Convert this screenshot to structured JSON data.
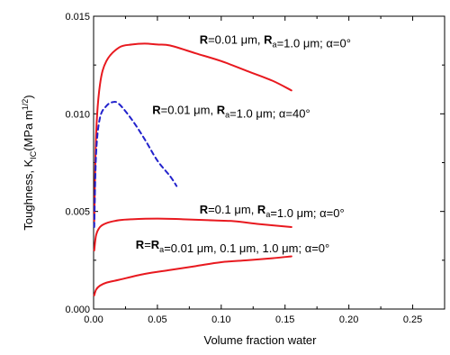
{
  "chart_data": {
    "type": "line",
    "xlabel": "Volume fraction water",
    "ylabel": {
      "main": "Toughness, K",
      "sub": "IC",
      "unit_open": "(MPa m",
      "unit_sup": "1/2",
      "unit_close": ")"
    },
    "xlim": [
      0,
      0.275
    ],
    "ylim": [
      0,
      0.015
    ],
    "xticks": [
      "0.00",
      "0.05",
      "0.10",
      "0.15",
      "0.20",
      "0.25"
    ],
    "yticks": [
      "0.000",
      "0.005",
      "0.010",
      "0.015"
    ],
    "grid": false,
    "series": [
      {
        "id": "curve-alpha0-r001",
        "color": "#e8191f",
        "dash": false,
        "x": [
          0.0005,
          0.002,
          0.005,
          0.01,
          0.02,
          0.03,
          0.04,
          0.05,
          0.06,
          0.08,
          0.1,
          0.12,
          0.14,
          0.155
        ],
        "y": [
          0.0045,
          0.009,
          0.0115,
          0.0127,
          0.0134,
          0.01355,
          0.0136,
          0.01355,
          0.0135,
          0.0131,
          0.0127,
          0.0122,
          0.0117,
          0.0112
        ]
      },
      {
        "id": "curve-alpha40-r001",
        "color": "#2222cc",
        "dash": true,
        "x": [
          0.0005,
          0.002,
          0.005,
          0.01,
          0.015,
          0.02,
          0.03,
          0.04,
          0.05,
          0.06,
          0.065
        ],
        "y": [
          0.0042,
          0.008,
          0.0098,
          0.0104,
          0.0106,
          0.0105,
          0.0097,
          0.0087,
          0.0076,
          0.0068,
          0.0063
        ]
      },
      {
        "id": "curve-alpha0-r01",
        "color": "#e8191f",
        "dash": false,
        "x": [
          0.0005,
          0.002,
          0.005,
          0.01,
          0.02,
          0.03,
          0.05,
          0.07,
          0.09,
          0.11,
          0.13,
          0.155
        ],
        "y": [
          0.003,
          0.0038,
          0.0042,
          0.0044,
          0.00455,
          0.0046,
          0.00463,
          0.0046,
          0.00455,
          0.0045,
          0.00435,
          0.0042
        ]
      },
      {
        "id": "curve-alpha0-equal",
        "color": "#e8191f",
        "dash": false,
        "x": [
          0.0005,
          0.002,
          0.005,
          0.01,
          0.02,
          0.04,
          0.06,
          0.08,
          0.1,
          0.12,
          0.14,
          0.155
        ],
        "y": [
          0.0007,
          0.001,
          0.0012,
          0.00135,
          0.0015,
          0.0018,
          0.002,
          0.0022,
          0.0024,
          0.0025,
          0.0026,
          0.0027
        ]
      }
    ],
    "annotations": [
      {
        "id": "annot-1",
        "x": 0.083,
        "y": 0.0136,
        "parts": [
          {
            "t": "R",
            "b": true
          },
          {
            "t": "=0.01 μm, "
          },
          {
            "t": "R",
            "b": true
          },
          {
            "t": "a",
            "sub": true
          },
          {
            "t": "=1.0 μm; α=0°"
          }
        ]
      },
      {
        "id": "annot-2",
        "x": 0.046,
        "y": 0.01,
        "parts": [
          {
            "t": "R",
            "b": true
          },
          {
            "t": "=0.01 μm, "
          },
          {
            "t": "R",
            "b": true
          },
          {
            "t": "a",
            "sub": true
          },
          {
            "t": "=1.0 μm; α=40°"
          }
        ]
      },
      {
        "id": "annot-3",
        "x": 0.083,
        "y": 0.0049,
        "parts": [
          {
            "t": "R",
            "b": true
          },
          {
            "t": "=0.1 μm, "
          },
          {
            "t": "R",
            "b": true
          },
          {
            "t": "a",
            "sub": true
          },
          {
            "t": "=1.0 μm; α=0°"
          }
        ]
      },
      {
        "id": "annot-4",
        "x": 0.033,
        "y": 0.0031,
        "parts": [
          {
            "t": "R",
            "b": true
          },
          {
            "t": "="
          },
          {
            "t": "R",
            "b": true
          },
          {
            "t": "a",
            "sub": true
          },
          {
            "t": "=0.01 μm, 0.1 μm, 1.0 μm; α=0°"
          }
        ]
      }
    ]
  }
}
